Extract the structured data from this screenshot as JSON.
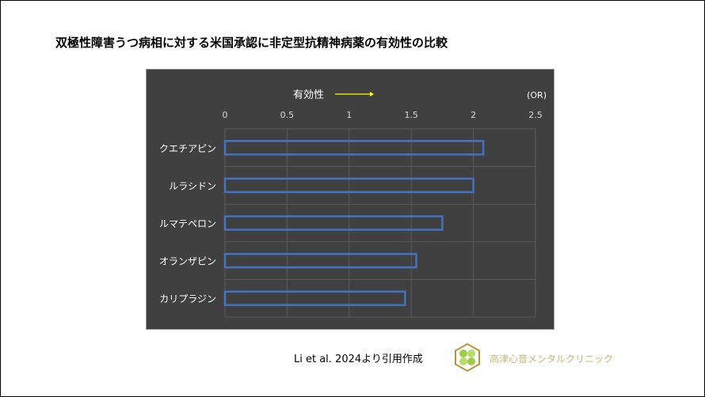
{
  "title": "双極性障害うつ病相に対する米国承認に非定型抗精神病薬の有効性の比較",
  "citation": "Li et al. 2024より引用作成",
  "clinic_name": "高津心音メンタルクリニック",
  "chart_data": {
    "type": "bar",
    "orientation": "horizontal",
    "axis_header": "有効性",
    "unit_label": "(OR)",
    "categories": [
      "クエチアピン",
      "ルラシドン",
      "ルマテペロン",
      "オランザピン",
      "カリプラジン"
    ],
    "values": [
      2.08,
      2.0,
      1.75,
      1.54,
      1.45
    ],
    "xlim": [
      0,
      2.5
    ],
    "xticks": [
      "0",
      "0.5",
      "1",
      "1.5",
      "2",
      "2.5"
    ],
    "grid": true,
    "bar_style": "outline",
    "colors": {
      "background": "#404040",
      "bar_outline": "#4472c4",
      "arrow": "#ffff00",
      "text": "#ffffff",
      "grid": "#5a5a5a"
    }
  }
}
